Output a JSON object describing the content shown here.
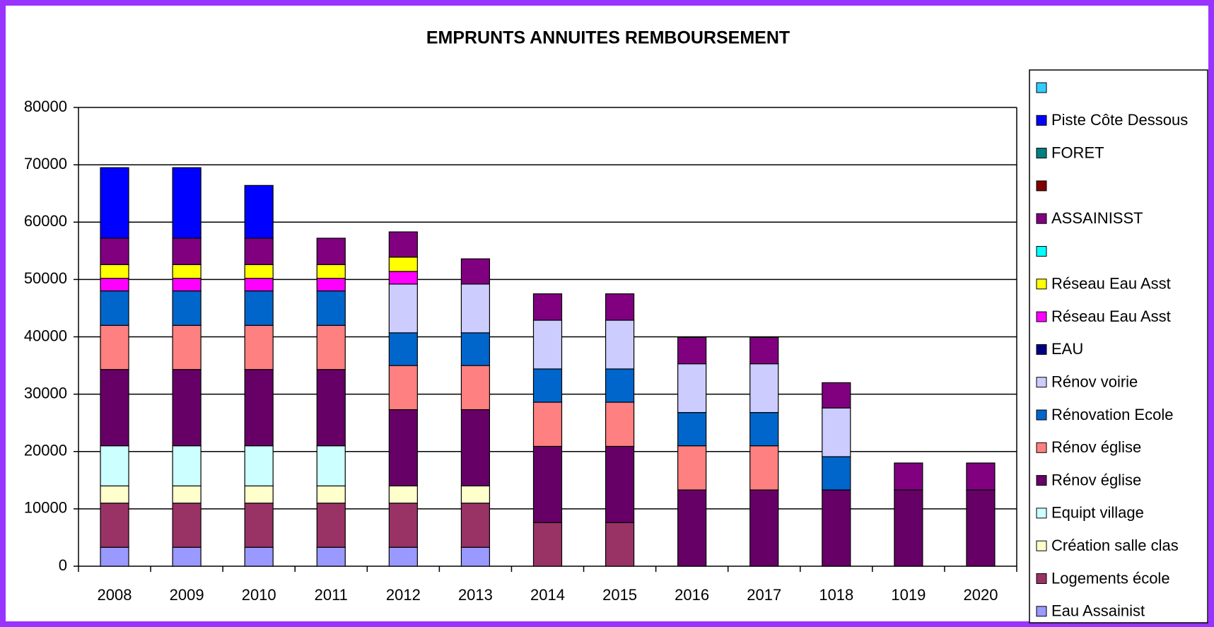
{
  "chart_data": {
    "type": "stacked_bar",
    "title": "EMPRUNTS ANNUITES REMBOURSEMENT",
    "categories": [
      "2008",
      "2009",
      "2010",
      "2011",
      "2012",
      "2013",
      "2014",
      "2015",
      "2016",
      "2017",
      "1018",
      "1019",
      "2020"
    ],
    "ylim": [
      0,
      80000
    ],
    "yticks": [
      0,
      10000,
      20000,
      30000,
      40000,
      50000,
      60000,
      70000,
      80000
    ],
    "grid": true,
    "legend": "right",
    "series": [
      {
        "name": "Eau Assainist",
        "color": "#9999ff",
        "values": [
          3300,
          3300,
          3300,
          3300,
          3300,
          3300,
          0,
          0,
          0,
          0,
          0,
          0,
          0
        ]
      },
      {
        "name": "Logements école",
        "color": "#993366",
        "values": [
          7700,
          7700,
          7700,
          7700,
          7700,
          7700,
          7600,
          7600,
          0,
          0,
          0,
          0,
          0
        ]
      },
      {
        "name": "Création salle clas",
        "color": "#ffffcc",
        "values": [
          3000,
          3000,
          3000,
          3000,
          3000,
          3000,
          0,
          0,
          0,
          0,
          0,
          0,
          0
        ]
      },
      {
        "name": "Equipt village",
        "color": "#ccffff",
        "values": [
          7000,
          7000,
          7000,
          7000,
          0,
          0,
          0,
          0,
          0,
          0,
          0,
          0,
          0
        ]
      },
      {
        "name": "Rénov église",
        "color": "#660066",
        "values": [
          13300,
          13300,
          13300,
          13300,
          13300,
          13300,
          13300,
          13300,
          13300,
          13300,
          13300,
          13300,
          13300
        ]
      },
      {
        "name": "Rénov église",
        "color": "#ff8080",
        "values": [
          7700,
          7700,
          7700,
          7700,
          7700,
          7700,
          7700,
          7700,
          7700,
          7700,
          0,
          0,
          0
        ]
      },
      {
        "name": "Rénovation Ecole",
        "color": "#0066cc",
        "values": [
          6000,
          6000,
          6000,
          6000,
          5700,
          5700,
          5800,
          5800,
          5800,
          5800,
          5800,
          0,
          0
        ]
      },
      {
        "name": "Rénov voirie",
        "color": "#ccccff",
        "values": [
          0,
          0,
          0,
          0,
          8500,
          8500,
          8500,
          8500,
          8500,
          8500,
          8500,
          0,
          0
        ]
      },
      {
        "name": "EAU",
        "color": "#000080",
        "values": [
          0,
          0,
          0,
          0,
          0,
          0,
          0,
          0,
          0,
          0,
          0,
          0,
          0
        ]
      },
      {
        "name": "Réseau Eau Asst",
        "color": "#ff00ff",
        "values": [
          2200,
          2200,
          2200,
          2200,
          2200,
          0,
          0,
          0,
          0,
          0,
          0,
          0,
          0
        ]
      },
      {
        "name": "Réseau Eau Asst",
        "color": "#ffff00",
        "values": [
          2400,
          2400,
          2400,
          2400,
          2500,
          0,
          0,
          0,
          0,
          0,
          0,
          0,
          0
        ]
      },
      {
        "color": "#00ffff",
        "values": [
          0,
          0,
          0,
          0,
          0,
          0,
          0,
          0,
          0,
          0,
          0,
          0,
          0
        ]
      },
      {
        "name": "ASSAINISST",
        "color": "#800080",
        "values": [
          4600,
          4600,
          4600,
          4600,
          4400,
          4400,
          4600,
          4600,
          4600,
          4600,
          4400,
          4700,
          4700
        ]
      },
      {
        "color": "#800000",
        "values": [
          0,
          0,
          0,
          0,
          0,
          0,
          0,
          0,
          0,
          0,
          0,
          0,
          0
        ]
      },
      {
        "name": "FORET",
        "color": "#008080",
        "values": [
          0,
          0,
          0,
          0,
          0,
          0,
          0,
          0,
          0,
          0,
          0,
          0,
          0
        ]
      },
      {
        "name": "Piste Côte Dessous",
        "color": "#0000ff",
        "values": [
          12300,
          12300,
          9200,
          0,
          0,
          0,
          0,
          0,
          0,
          0,
          0,
          0,
          0
        ]
      },
      {
        "color": "#33ccff",
        "values": [
          0,
          0,
          0,
          0,
          0,
          0,
          0,
          0,
          0,
          0,
          0,
          0,
          0
        ]
      }
    ]
  }
}
